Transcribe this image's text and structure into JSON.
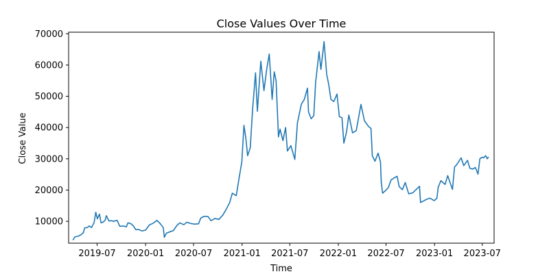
{
  "chart_data": {
    "type": "line",
    "title": "Close Values Over Time",
    "xlabel": "Time",
    "ylabel": "Close Value",
    "grid": false,
    "legend": "none",
    "xlim": [
      "2019-03-15",
      "2023-08-15"
    ],
    "ylim": [
      3000,
      70500
    ],
    "x_ticks": [
      "2019-07",
      "2020-01",
      "2020-07",
      "2021-01",
      "2021-07",
      "2022-01",
      "2022-07",
      "2023-01",
      "2023-07"
    ],
    "x_tick_dates": [
      "2019-07-01",
      "2020-01-01",
      "2020-07-01",
      "2021-01-01",
      "2021-07-01",
      "2022-01-01",
      "2022-07-01",
      "2023-01-01",
      "2023-07-01"
    ],
    "y_ticks": [
      10000,
      20000,
      30000,
      40000,
      50000,
      60000,
      70000
    ],
    "series": [
      {
        "color": "#1f77b4",
        "points": [
          [
            "2019-04-01",
            4100
          ],
          [
            "2019-04-08",
            5000
          ],
          [
            "2019-04-22",
            5300
          ],
          [
            "2019-05-01",
            5700
          ],
          [
            "2019-05-10",
            6400
          ],
          [
            "2019-05-15",
            7900
          ],
          [
            "2019-05-25",
            8000
          ],
          [
            "2019-06-01",
            8500
          ],
          [
            "2019-06-10",
            8000
          ],
          [
            "2019-06-20",
            9700
          ],
          [
            "2019-06-26",
            12900
          ],
          [
            "2019-07-02",
            10800
          ],
          [
            "2019-07-10",
            12300
          ],
          [
            "2019-07-16",
            9500
          ],
          [
            "2019-07-25",
            9800
          ],
          [
            "2019-08-01",
            10400
          ],
          [
            "2019-08-05",
            11800
          ],
          [
            "2019-08-15",
            10100
          ],
          [
            "2019-08-25",
            10200
          ],
          [
            "2019-09-01",
            10000
          ],
          [
            "2019-09-15",
            10300
          ],
          [
            "2019-09-25",
            8400
          ],
          [
            "2019-10-10",
            8500
          ],
          [
            "2019-10-20",
            8200
          ],
          [
            "2019-10-26",
            9500
          ],
          [
            "2019-11-05",
            9300
          ],
          [
            "2019-11-15",
            8600
          ],
          [
            "2019-11-25",
            7300
          ],
          [
            "2019-12-05",
            7400
          ],
          [
            "2019-12-18",
            6900
          ],
          [
            "2020-01-01",
            7200
          ],
          [
            "2020-01-15",
            8800
          ],
          [
            "2020-01-30",
            9400
          ],
          [
            "2020-02-13",
            10300
          ],
          [
            "2020-02-25",
            9300
          ],
          [
            "2020-03-08",
            8000
          ],
          [
            "2020-03-12",
            4900
          ],
          [
            "2020-03-20",
            6200
          ],
          [
            "2020-04-01",
            6600
          ],
          [
            "2020-04-15",
            7000
          ],
          [
            "2020-04-29",
            8700
          ],
          [
            "2020-05-10",
            9500
          ],
          [
            "2020-05-25",
            8900
          ],
          [
            "2020-06-05",
            9700
          ],
          [
            "2020-06-20",
            9300
          ],
          [
            "2020-07-05",
            9100
          ],
          [
            "2020-07-20",
            9200
          ],
          [
            "2020-07-28",
            11000
          ],
          [
            "2020-08-10",
            11600
          ],
          [
            "2020-08-25",
            11500
          ],
          [
            "2020-09-05",
            10200
          ],
          [
            "2020-09-20",
            10900
          ],
          [
            "2020-10-05",
            10600
          ],
          [
            "2020-10-20",
            12000
          ],
          [
            "2020-11-01",
            13700
          ],
          [
            "2020-11-15",
            16000
          ],
          [
            "2020-11-25",
            19000
          ],
          [
            "2020-12-10",
            18200
          ],
          [
            "2020-12-20",
            23500
          ],
          [
            "2020-12-31",
            29000
          ],
          [
            "2021-01-08",
            40700
          ],
          [
            "2021-01-15",
            36800
          ],
          [
            "2021-01-22",
            31000
          ],
          [
            "2021-02-01",
            33500
          ],
          [
            "2021-02-10",
            46000
          ],
          [
            "2021-02-21",
            57500
          ],
          [
            "2021-02-28",
            45200
          ],
          [
            "2021-03-13",
            61200
          ],
          [
            "2021-03-25",
            51800
          ],
          [
            "2021-04-05",
            59000
          ],
          [
            "2021-04-14",
            63500
          ],
          [
            "2021-04-25",
            49000
          ],
          [
            "2021-05-03",
            57800
          ],
          [
            "2021-05-10",
            55000
          ],
          [
            "2021-05-19",
            37000
          ],
          [
            "2021-05-25",
            39500
          ],
          [
            "2021-06-05",
            35800
          ],
          [
            "2021-06-15",
            40000
          ],
          [
            "2021-06-22",
            32500
          ],
          [
            "2021-07-05",
            34200
          ],
          [
            "2021-07-20",
            29800
          ],
          [
            "2021-07-30",
            41500
          ],
          [
            "2021-08-14",
            47500
          ],
          [
            "2021-08-25",
            49000
          ],
          [
            "2021-09-06",
            52600
          ],
          [
            "2021-09-10",
            45000
          ],
          [
            "2021-09-20",
            42800
          ],
          [
            "2021-09-30",
            43800
          ],
          [
            "2021-10-07",
            54500
          ],
          [
            "2021-10-20",
            64300
          ],
          [
            "2021-10-27",
            58600
          ],
          [
            "2021-11-08",
            67500
          ],
          [
            "2021-11-18",
            57000
          ],
          [
            "2021-11-26",
            53600
          ],
          [
            "2021-12-04",
            49000
          ],
          [
            "2021-12-15",
            48300
          ],
          [
            "2021-12-27",
            50700
          ],
          [
            "2022-01-05",
            43500
          ],
          [
            "2022-01-15",
            43100
          ],
          [
            "2022-01-22",
            35000
          ],
          [
            "2022-02-01",
            38500
          ],
          [
            "2022-02-10",
            44000
          ],
          [
            "2022-02-24",
            38300
          ],
          [
            "2022-03-10",
            39000
          ],
          [
            "2022-03-28",
            47400
          ],
          [
            "2022-04-10",
            42200
          ],
          [
            "2022-04-25",
            40400
          ],
          [
            "2022-05-05",
            39700
          ],
          [
            "2022-05-10",
            31000
          ],
          [
            "2022-05-20",
            29200
          ],
          [
            "2022-06-01",
            31800
          ],
          [
            "2022-06-10",
            29000
          ],
          [
            "2022-06-13",
            22500
          ],
          [
            "2022-06-18",
            19000
          ],
          [
            "2022-06-30",
            19900
          ],
          [
            "2022-07-10",
            20800
          ],
          [
            "2022-07-20",
            23200
          ],
          [
            "2022-07-30",
            23800
          ],
          [
            "2022-08-12",
            24400
          ],
          [
            "2022-08-20",
            21100
          ],
          [
            "2022-09-01",
            20100
          ],
          [
            "2022-09-12",
            22400
          ],
          [
            "2022-09-25",
            18800
          ],
          [
            "2022-10-10",
            19100
          ],
          [
            "2022-10-25",
            20300
          ],
          [
            "2022-11-05",
            21200
          ],
          [
            "2022-11-09",
            16000
          ],
          [
            "2022-11-20",
            16500
          ],
          [
            "2022-12-01",
            17000
          ],
          [
            "2022-12-15",
            17400
          ],
          [
            "2022-12-31",
            16600
          ],
          [
            "2023-01-10",
            17400
          ],
          [
            "2023-01-15",
            20900
          ],
          [
            "2023-01-25",
            23000
          ],
          [
            "2023-02-10",
            21800
          ],
          [
            "2023-02-20",
            24600
          ],
          [
            "2023-03-10",
            20200
          ],
          [
            "2023-03-18",
            27400
          ],
          [
            "2023-03-25",
            28000
          ],
          [
            "2023-04-12",
            30300
          ],
          [
            "2023-04-22",
            27800
          ],
          [
            "2023-05-06",
            29500
          ],
          [
            "2023-05-15",
            27000
          ],
          [
            "2023-05-25",
            26700
          ],
          [
            "2023-06-05",
            27200
          ],
          [
            "2023-06-15",
            25100
          ],
          [
            "2023-06-22",
            30000
          ],
          [
            "2023-06-30",
            30500
          ],
          [
            "2023-07-06",
            30300
          ],
          [
            "2023-07-14",
            31000
          ],
          [
            "2023-07-20",
            30000
          ],
          [
            "2023-07-24",
            30500
          ]
        ]
      }
    ]
  }
}
